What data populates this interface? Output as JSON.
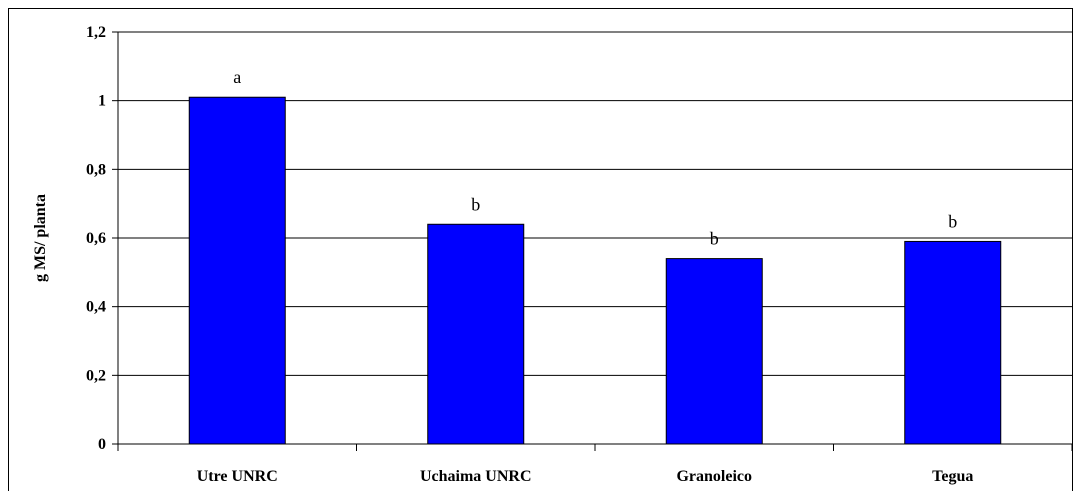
{
  "chart_data": {
    "type": "bar",
    "title": "",
    "xlabel": "",
    "ylabel": "g MS/ planta",
    "categories": [
      "Utre UNRC",
      "Uchaima UNRC",
      "Granoleico",
      "Tegua"
    ],
    "values": [
      1.01,
      0.64,
      0.54,
      0.59
    ],
    "annotations": [
      "a",
      "b",
      "b",
      "b"
    ],
    "ylim": [
      0,
      1.2
    ],
    "yticks": [
      0,
      0.2,
      0.4,
      0.6,
      0.8,
      1,
      1.2
    ],
    "ytick_labels": [
      "0",
      "0,2",
      "0,4",
      "0,6",
      "0,8",
      "1",
      "1,2"
    ],
    "grid": true,
    "legend": "none",
    "colors": {
      "bar_fill": "#0000ff",
      "bar_stroke": "#000000",
      "grid": "#000000",
      "background": "#ffffff"
    }
  }
}
